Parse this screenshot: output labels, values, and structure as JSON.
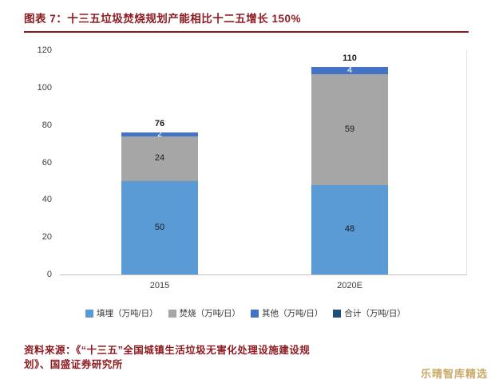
{
  "header": {
    "title": "图表 7：十三五垃圾焚烧规划产能相比十二五增长 150%"
  },
  "chart_data": {
    "type": "stacked-bar",
    "title": "图表 7：十三五垃圾焚烧规划产能相比十二五增长 150%",
    "categories": [
      "2015",
      "2020E"
    ],
    "series": [
      {
        "name": "填埋（万吨/日）",
        "color": "#5B9BD5",
        "label_color": "#1a1a1a",
        "values": [
          50,
          48
        ]
      },
      {
        "name": "焚烧（万吨/日）",
        "color": "#A6A6A6",
        "label_color": "#1a1a1a",
        "values": [
          24,
          59
        ]
      },
      {
        "name": "其他（万吨/日）",
        "color": "#4472C4",
        "label_color": "#ffffff",
        "values": [
          2,
          4
        ]
      }
    ],
    "totals": {
      "name": "合计（万吨/日）",
      "color": "#1F4E79",
      "values": [
        76,
        110
      ]
    },
    "y_ticks": [
      0,
      20,
      40,
      60,
      80,
      100,
      120
    ],
    "ylim": [
      0,
      120
    ],
    "xlabel": "",
    "ylabel": "",
    "grid": false,
    "legend_position": "bottom"
  },
  "footer": {
    "source_line1": "资料来源：《“十三五”全国城镇生活垃圾无害化处理设施建设规",
    "source_line2": "划》、国盛证券研究所"
  },
  "watermark": {
    "text": "乐晴智库精选"
  }
}
